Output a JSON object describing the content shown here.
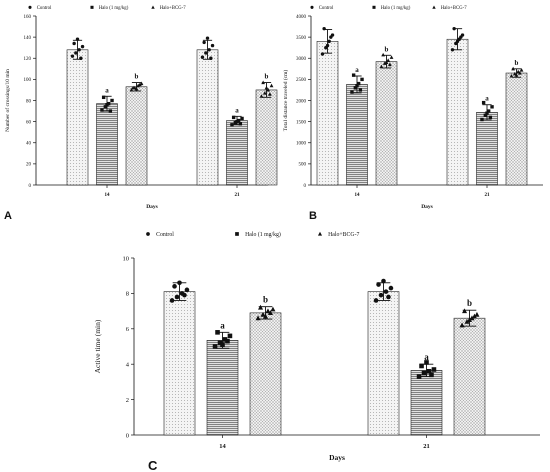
{
  "legend": [
    "Control",
    "Halo (1 mg/kg)",
    "Halo+BCG-7"
  ],
  "legend_c": [
    "Control",
    "Halo (1 mg/kg)",
    "Halo+BCG-7"
  ],
  "colors": {
    "axis": "#111111",
    "bar_fill": "#f3f3f3",
    "bar_dark": "#555555"
  },
  "chart_data": [
    {
      "panel": "A",
      "type": "bar",
      "categories": [
        "14",
        "21"
      ],
      "xlabel": "Days",
      "ylabel": "Number of crossings/10 min",
      "ylim": [
        0,
        160
      ],
      "yticks": [
        0,
        20,
        40,
        60,
        80,
        100,
        120,
        140,
        160
      ],
      "series": [
        {
          "name": "Control",
          "values": [
            128,
            128
          ],
          "errors": [
            9,
            9
          ],
          "labels": [
            "",
            ""
          ],
          "points": [
            [
              122,
              125,
              128,
              131,
              134,
              138,
              120
            ],
            [
              121,
              125,
              128,
              132,
              135,
              139,
              120
            ]
          ]
        },
        {
          "name": "Halo (1 mg/kg)",
          "values": [
            77,
            61
          ],
          "errors": [
            7,
            4
          ],
          "labels": [
            "a",
            "a"
          ],
          "points": [
            [
              71,
              74,
              77,
              80,
              83,
              76,
              70
            ],
            [
              57,
              59,
              61,
              63,
              64,
              60,
              58
            ]
          ]
        },
        {
          "name": "Halo+BCG-7",
          "values": [
            93,
            90
          ],
          "errors": [
            4,
            7
          ],
          "labels": [
            "b",
            "b"
          ],
          "points": [
            [
              90,
              92,
              94,
              96,
              92,
              91,
              95
            ],
            [
              84,
              87,
              90,
              94,
              97,
              92,
              86
            ]
          ]
        }
      ]
    },
    {
      "panel": "B",
      "type": "bar",
      "categories": [
        "14",
        "21"
      ],
      "xlabel": "Days",
      "ylabel": "Total distance traveled (cm)",
      "ylim": [
        0,
        4000
      ],
      "yticks": [
        0,
        500,
        1000,
        1500,
        2000,
        2500,
        3000,
        3500,
        4000
      ],
      "series": [
        {
          "name": "Control",
          "values": [
            3400,
            3450
          ],
          "errors": [
            280,
            250
          ],
          "labels": [
            "",
            ""
          ],
          "points": [
            [
              3100,
              3250,
              3400,
              3550,
              3700,
              3300,
              3500
            ],
            [
              3200,
              3350,
              3450,
              3550,
              3700,
              3400,
              3500
            ]
          ]
        },
        {
          "name": "Halo (1 mg/kg)",
          "values": [
            2380,
            1720
          ],
          "errors": [
            200,
            180
          ],
          "labels": [
            "a",
            "a"
          ],
          "points": [
            [
              2200,
              2300,
              2400,
              2500,
              2600,
              2350,
              2250
            ],
            [
              1550,
              1650,
              1750,
              1850,
              1950,
              1700,
              1600
            ]
          ]
        },
        {
          "name": "Halo+BCG-7",
          "values": [
            2920,
            2650
          ],
          "errors": [
            150,
            100
          ],
          "labels": [
            "b",
            "b"
          ],
          "points": [
            [
              2800,
              2880,
              2950,
              3020,
              3080,
              2900,
              2850
            ],
            [
              2580,
              2630,
              2680,
              2720,
              2750,
              2600,
              2650
            ]
          ]
        }
      ]
    },
    {
      "panel": "C",
      "type": "bar",
      "categories": [
        "14",
        "21"
      ],
      "xlabel": "Days",
      "ylabel": "Active time (min)",
      "ylim": [
        0,
        10
      ],
      "yticks": [
        0,
        2,
        4,
        6,
        8,
        10
      ],
      "series": [
        {
          "name": "Control",
          "values": [
            8.1,
            8.1
          ],
          "errors": [
            0.5,
            0.5
          ],
          "labels": [
            "",
            ""
          ],
          "points": [
            [
              7.6,
              7.8,
              8.0,
              8.2,
              8.4,
              8.6,
              7.9
            ],
            [
              7.6,
              7.9,
              8.1,
              8.3,
              8.5,
              8.7,
              7.8
            ]
          ]
        },
        {
          "name": "Halo (1 mg/kg)",
          "values": [
            5.35,
            3.65
          ],
          "errors": [
            0.45,
            0.35
          ],
          "labels": [
            "a",
            "a"
          ],
          "points": [
            [
              5.0,
              5.2,
              5.4,
              5.6,
              5.8,
              5.1,
              5.3
            ],
            [
              3.3,
              3.5,
              3.6,
              3.7,
              3.9,
              4.1,
              3.4
            ]
          ]
        },
        {
          "name": "Halo+BCG-7",
          "values": [
            6.9,
            6.6
          ],
          "errors": [
            0.35,
            0.45
          ],
          "labels": [
            "b",
            "b"
          ],
          "points": [
            [
              6.6,
              6.8,
              7.0,
              7.1,
              7.2,
              6.7,
              6.9
            ],
            [
              6.2,
              6.4,
              6.6,
              6.8,
              7.0,
              6.5,
              6.7
            ]
          ]
        }
      ]
    }
  ]
}
